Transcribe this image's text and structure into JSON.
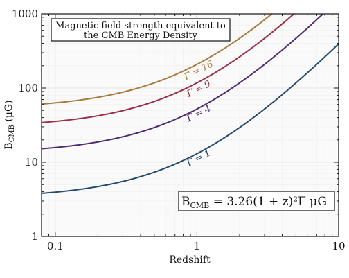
{
  "chart_data": {
    "type": "line",
    "title_lines": [
      "Magnetic field strength equivalent to",
      "the CMB Energy Density"
    ],
    "formula": "B",
    "formula_sub": "CMB",
    "formula_rest": " = 3.26(1 + z)²Γ μG",
    "ylabel_main": "B",
    "ylabel_sub": "CMB",
    "ylabel_rest": " (μG)",
    "xlabel": "Redshift",
    "xscale": "log",
    "yscale": "log",
    "xlim": [
      0.08,
      10
    ],
    "ylim": [
      1,
      1000
    ],
    "x_ticks": [
      {
        "v": 0.1,
        "label": "0.1"
      },
      {
        "v": 1,
        "label": "1"
      },
      {
        "v": 10,
        "label": "10"
      }
    ],
    "y_ticks": [
      {
        "v": 1,
        "label": "1"
      },
      {
        "v": 10,
        "label": "10"
      },
      {
        "v": 100,
        "label": "100"
      },
      {
        "v": 1000,
        "label": "1000"
      }
    ],
    "grid": true,
    "series": [
      {
        "name": "Γ = 1",
        "gamma": 1,
        "color": "#244a6e",
        "label_at_x": 1.05,
        "label_y": 10.5
      },
      {
        "name": "Γ = 4",
        "gamma": 4,
        "color": "#4e2a6e",
        "label_at_x": 1.05,
        "label_y": 42
      },
      {
        "name": "Γ = 9",
        "gamma": 9,
        "color": "#9a2f45",
        "label_at_x": 1.05,
        "label_y": 90
      },
      {
        "name": "Γ = 16",
        "gamma": 16,
        "color": "#a87a3e",
        "label_at_x": 1.05,
        "label_y": 160
      }
    ]
  }
}
